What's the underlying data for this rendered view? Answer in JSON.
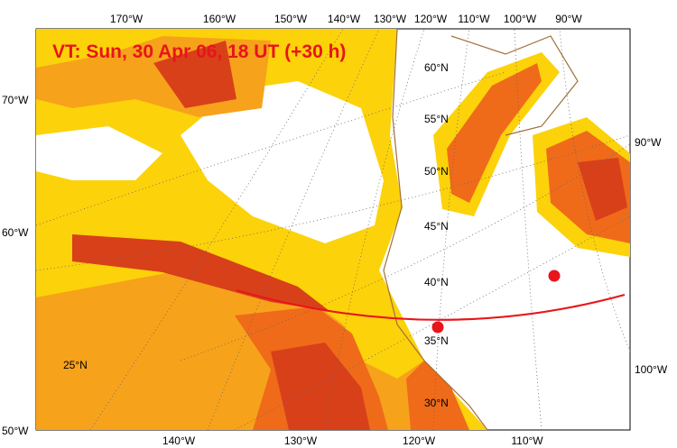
{
  "title": "VT:  Sun, 30 Apr 06, 18 UT (+30 h)",
  "labels": {
    "top": [
      "170°W",
      "160°W",
      "150°W",
      "140°W",
      "130°W",
      "120°W",
      "110°W",
      "100°W",
      "90°W"
    ],
    "left": [
      "70°W",
      "60°W",
      "50°W"
    ],
    "bottom": [
      "140°W",
      "130°W",
      "120°W",
      "110°W"
    ],
    "right": [
      "90°W",
      "100°W"
    ],
    "latitudes": [
      "60°N",
      "55°N",
      "50°N",
      "45°N",
      "40°N",
      "35°N",
      "30°N",
      "25°N"
    ]
  }
}
